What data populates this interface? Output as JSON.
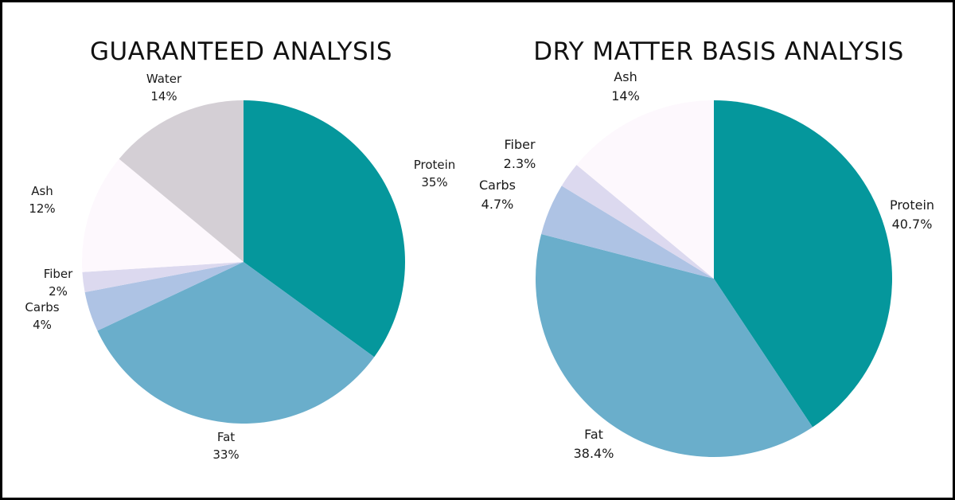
{
  "colors": {
    "Protein": "#05979c",
    "Fat": "#6aaecb",
    "Carbs": "#aec3e4",
    "Fiber": "#dcd9ef",
    "Ash": "#fdf8fd",
    "Water": "#d4cfd5"
  },
  "chart_data": [
    {
      "type": "pie",
      "title": "GUARANTEED ANALYSIS",
      "unit": "%",
      "slices": [
        {
          "name": "Protein",
          "value": 35,
          "label": "35%"
        },
        {
          "name": "Fat",
          "value": 33,
          "label": "33%"
        },
        {
          "name": "Carbs",
          "value": 4,
          "label": "4%"
        },
        {
          "name": "Fiber",
          "value": 2,
          "label": "2%"
        },
        {
          "name": "Ash",
          "value": 12,
          "label": "12%"
        },
        {
          "name": "Water",
          "value": 14,
          "label": "14%"
        }
      ]
    },
    {
      "type": "pie",
      "title": "DRY MATTER BASIS ANALYSIS",
      "unit": "%",
      "slices": [
        {
          "name": "Protein",
          "value": 40.7,
          "label": "40.7%"
        },
        {
          "name": "Fat",
          "value": 38.4,
          "label": "38.4%"
        },
        {
          "name": "Carbs",
          "value": 4.7,
          "label": "4.7%"
        },
        {
          "name": "Fiber",
          "value": 2.3,
          "label": "2.3%"
        },
        {
          "name": "Ash",
          "value": 14,
          "label": "14%"
        }
      ]
    }
  ]
}
